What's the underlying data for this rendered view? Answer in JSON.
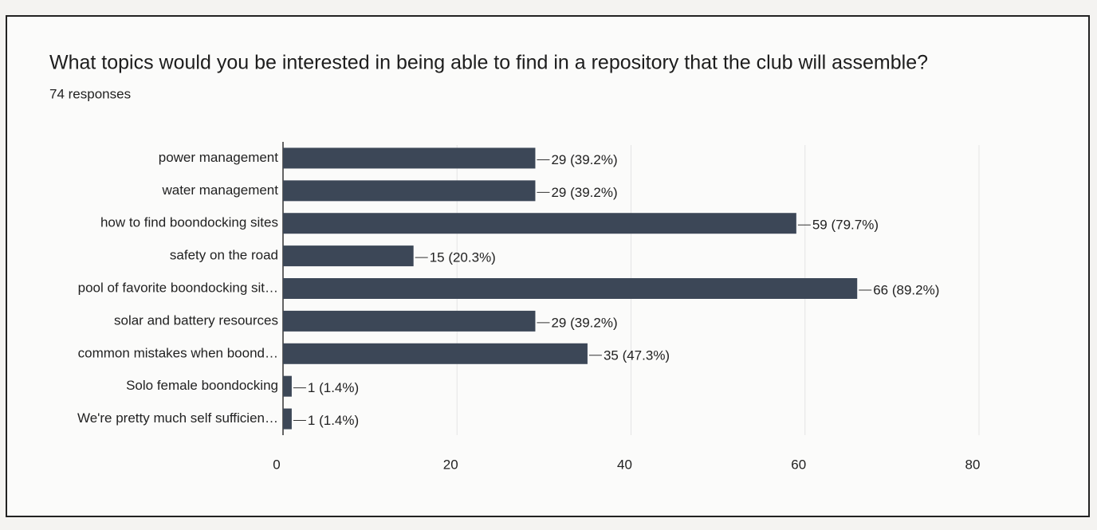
{
  "chart_data": {
    "type": "bar",
    "orientation": "horizontal",
    "title": "What topics would you be interested in being able to find in a repository that the club will assemble?",
    "subtitle": "74 responses",
    "categories": [
      "power management",
      "water management",
      "how to find boondocking sites",
      "safety on the road",
      "pool of favorite boondocking sit…",
      "solar and battery resources",
      "common mistakes when boond…",
      "Solo female boondocking",
      "We're pretty much self sufficien…"
    ],
    "values": [
      29,
      29,
      59,
      15,
      66,
      29,
      35,
      1,
      1
    ],
    "value_labels": [
      "29 (39.2%)",
      "29 (39.2%)",
      "59 (79.7%)",
      "15 (20.3%)",
      "66 (89.2%)",
      "29 (39.2%)",
      "35 (47.3%)",
      "1 (1.4%)",
      "1 (1.4%)"
    ],
    "color": "#3c4757",
    "xlim": [
      0,
      80
    ],
    "xticks": [
      0,
      20,
      40,
      60,
      80
    ],
    "grid": true
  }
}
